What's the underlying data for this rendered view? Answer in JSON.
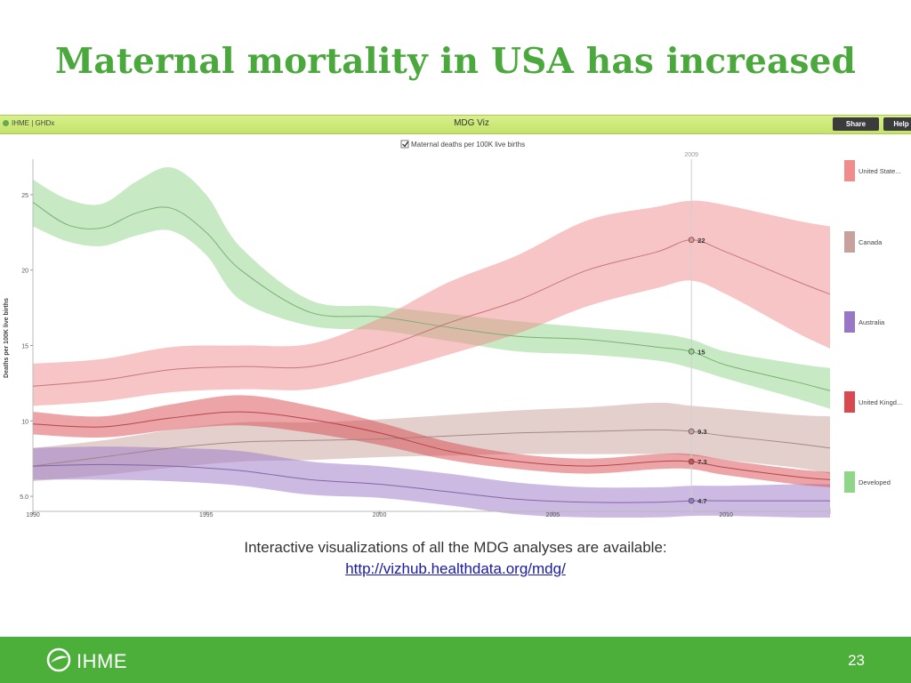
{
  "slide": {
    "title": "Maternal mortality in USA has increased",
    "caption_line1": "Interactive visualizations of all the MDG analyses are available:",
    "caption_link": "http://vizhub.healthdata.org/mdg/",
    "footer_logo_text": "IHME",
    "page_number": "23"
  },
  "app": {
    "brand": "IHME | GHDx",
    "title": "MDG Viz",
    "share_label": "Share",
    "help_label": "Help"
  },
  "chart_data": {
    "type": "line",
    "title": "Maternal deaths per 100K live births",
    "ylabel": "Deaths per 100K live births",
    "xlabel": "",
    "xlim": [
      1990,
      2013
    ],
    "ylim": [
      4,
      27
    ],
    "x_ticks": [
      1990,
      1995,
      2000,
      2005,
      2010
    ],
    "y_ticks": [
      5,
      10,
      15,
      20,
      25
    ],
    "y_tick_labels": [
      "5.0",
      "10",
      "15",
      "20",
      "25"
    ],
    "highlight_year": 2009,
    "highlight_label": "2009",
    "legend_position": "right",
    "series": [
      {
        "name": "United State...",
        "color": "#f08c8c",
        "x": [
          1990,
          1992,
          1994,
          1996,
          1998,
          2000,
          2002,
          2004,
          2006,
          2008,
          2009,
          2010,
          2012,
          2013
        ],
        "values": [
          12.3,
          12.7,
          13.4,
          13.6,
          13.6,
          14.8,
          16.5,
          18.0,
          20.0,
          21.2,
          22.0,
          21.2,
          19.3,
          18.4
        ],
        "upper": [
          13.8,
          14.1,
          14.9,
          15.0,
          15.1,
          16.8,
          19.2,
          21.0,
          23.3,
          24.2,
          24.6,
          24.3,
          23.3,
          22.9
        ],
        "lower": [
          11.0,
          11.3,
          11.9,
          12.1,
          12.1,
          13.1,
          14.4,
          15.8,
          17.6,
          18.8,
          19.3,
          18.4,
          15.9,
          14.8
        ],
        "marker_label": "22"
      },
      {
        "name": "Canada",
        "color": "#c7a19c",
        "x": [
          1990,
          1992,
          1994,
          1996,
          1998,
          2000,
          2002,
          2004,
          2006,
          2008,
          2009,
          2010,
          2012,
          2013
        ],
        "values": [
          7.0,
          7.6,
          8.2,
          8.6,
          8.7,
          8.8,
          9.0,
          9.2,
          9.3,
          9.4,
          9.3,
          9.0,
          8.5,
          8.2
        ],
        "upper": [
          8.2,
          8.7,
          9.4,
          9.9,
          9.9,
          10.1,
          10.4,
          10.7,
          10.9,
          11.2,
          11.0,
          10.8,
          10.4,
          10.3
        ],
        "lower": [
          6.0,
          6.4,
          6.9,
          7.3,
          7.4,
          7.6,
          7.7,
          7.8,
          7.8,
          7.8,
          7.7,
          7.4,
          6.9,
          6.5
        ],
        "marker_label": "9.3"
      },
      {
        "name": "Australia",
        "color": "#9a76c7",
        "x": [
          1990,
          1992,
          1994,
          1996,
          1998,
          2000,
          2002,
          2004,
          2006,
          2008,
          2009,
          2010,
          2012,
          2013
        ],
        "values": [
          7.0,
          7.1,
          7.0,
          6.7,
          6.1,
          5.8,
          5.3,
          4.8,
          4.6,
          4.6,
          4.7,
          4.7,
          4.7,
          4.7
        ],
        "upper": [
          8.2,
          8.3,
          8.2,
          8.0,
          7.3,
          7.0,
          6.5,
          5.9,
          5.6,
          5.6,
          5.7,
          5.7,
          5.8,
          5.8
        ],
        "lower": [
          6.1,
          6.1,
          6.0,
          5.7,
          5.1,
          4.9,
          4.4,
          3.8,
          3.6,
          3.6,
          3.7,
          3.7,
          3.6,
          3.5
        ],
        "marker_label": "4.7"
      },
      {
        "name": "United Kingd...",
        "color": "#d94a50",
        "x": [
          1990,
          1992,
          1994,
          1996,
          1998,
          2000,
          2002,
          2004,
          2006,
          2008,
          2009,
          2010,
          2012,
          2013
        ],
        "values": [
          9.8,
          9.6,
          10.2,
          10.6,
          10.1,
          9.2,
          8.0,
          7.3,
          7.0,
          7.3,
          7.3,
          6.9,
          6.3,
          6.1
        ],
        "upper": [
          10.6,
          10.3,
          11.1,
          11.7,
          11.0,
          9.9,
          8.6,
          7.8,
          7.5,
          7.8,
          7.8,
          7.4,
          6.8,
          6.6
        ],
        "lower": [
          9.1,
          8.9,
          9.4,
          9.7,
          9.2,
          8.4,
          7.4,
          6.8,
          6.5,
          6.8,
          6.8,
          6.4,
          5.8,
          5.6
        ],
        "marker_label": "7.3"
      },
      {
        "name": "Developed",
        "color": "#8fd68a",
        "x": [
          1990,
          1991,
          1992,
          1993,
          1994,
          1995,
          1996,
          1998,
          2000,
          2002,
          2004,
          2006,
          2008,
          2009,
          2010,
          2012,
          2013
        ],
        "values": [
          24.5,
          23.0,
          22.8,
          23.8,
          24.1,
          22.5,
          20.0,
          17.2,
          16.9,
          16.2,
          15.6,
          15.4,
          14.9,
          14.6,
          13.7,
          12.6,
          12.0
        ],
        "upper": [
          26.0,
          24.7,
          24.4,
          25.9,
          26.8,
          25.0,
          21.5,
          18.0,
          17.6,
          17.1,
          16.6,
          16.2,
          15.8,
          15.4,
          14.6,
          13.8,
          13.5
        ],
        "lower": [
          22.9,
          21.9,
          21.6,
          22.3,
          22.6,
          21.0,
          18.0,
          16.3,
          16.0,
          15.3,
          14.6,
          14.4,
          14.0,
          13.5,
          12.8,
          11.5,
          10.8
        ],
        "marker_label": "15"
      }
    ]
  }
}
